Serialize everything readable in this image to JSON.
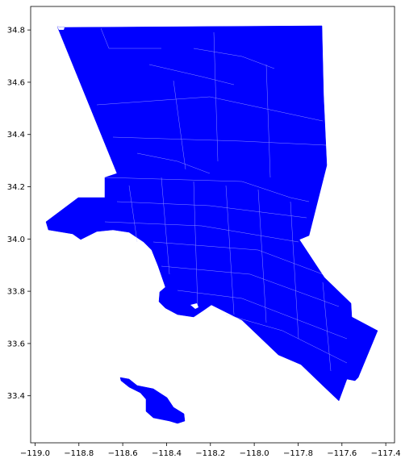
{
  "map": {
    "fill_color": "#0000ff",
    "edge_color": "#ffffff",
    "background": "#ffffff",
    "x_ticks": [
      "−119.0",
      "−118.8",
      "−118.6",
      "−118.4",
      "−118.2",
      "−118.0",
      "−117.8",
      "−117.6",
      "−117.4"
    ],
    "y_ticks": [
      "34.8",
      "34.6",
      "34.4",
      "34.2",
      "34.0",
      "33.8",
      "33.6",
      "33.4"
    ],
    "xlim": [
      -119.02,
      -117.36
    ],
    "ylim": [
      33.22,
      34.89
    ]
  }
}
